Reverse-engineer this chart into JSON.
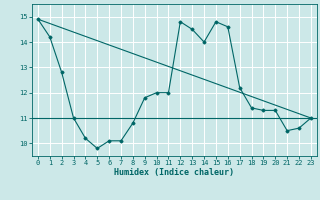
{
  "xlabel": "Humidex (Indice chaleur)",
  "bg_color": "#cce8e8",
  "line_color": "#006666",
  "grid_color": "#ffffff",
  "xlim": [
    -0.5,
    23.5
  ],
  "ylim": [
    9.5,
    15.5
  ],
  "yticks": [
    10,
    11,
    12,
    13,
    14,
    15
  ],
  "xticks": [
    0,
    1,
    2,
    3,
    4,
    5,
    6,
    7,
    8,
    9,
    10,
    11,
    12,
    13,
    14,
    15,
    16,
    17,
    18,
    19,
    20,
    21,
    22,
    23
  ],
  "series2_x": [
    0,
    1,
    2,
    3,
    4,
    5,
    6,
    7,
    8,
    9,
    10,
    11,
    12,
    13,
    14,
    15,
    16,
    17,
    18,
    19,
    20,
    21,
    22,
    23
  ],
  "series2_y": [
    14.9,
    14.2,
    12.8,
    11.0,
    10.2,
    9.8,
    10.1,
    10.1,
    10.8,
    11.8,
    12.0,
    12.0,
    14.8,
    14.5,
    14.0,
    14.8,
    14.6,
    12.2,
    11.4,
    11.3,
    11.3,
    10.5,
    10.6,
    11.0
  ],
  "trend_x": [
    0,
    23
  ],
  "trend_y": [
    14.9,
    11.0
  ],
  "hline_y": 11.0,
  "xlabel_fontsize": 6,
  "tick_fontsize": 5
}
